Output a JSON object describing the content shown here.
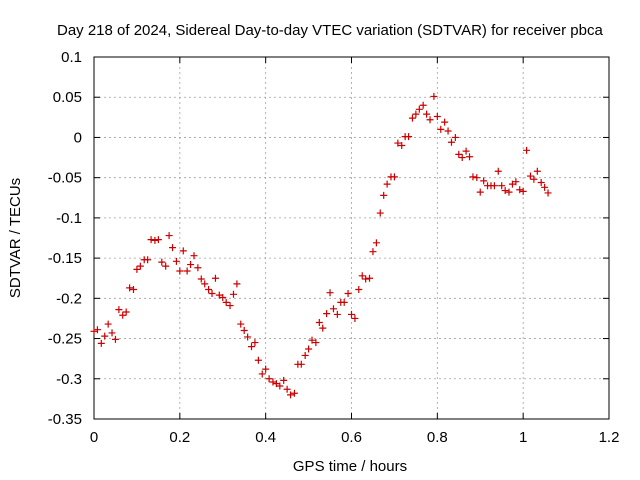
{
  "chart_data": {
    "type": "scatter",
    "title": "Day 218 of 2024, Sidereal Day-to-day VTEC variation (SDTVAR) for receiver pbca",
    "xlabel": "GPS time / hours",
    "ylabel": "SDTVAR / TECUs",
    "xlim": [
      0,
      1.2
    ],
    "ylim": [
      -0.35,
      0.1
    ],
    "xticks": [
      0,
      0.2,
      0.4,
      0.6,
      0.8,
      1,
      1.2
    ],
    "xtick_labels": [
      "0",
      "0.2",
      "0.4",
      "0.6",
      "0.8",
      "1",
      "1.2"
    ],
    "yticks": [
      -0.35,
      -0.3,
      -0.25,
      -0.2,
      -0.15,
      -0.1,
      -0.05,
      0,
      0.05,
      0.1
    ],
    "ytick_labels": [
      "-0.35",
      "-0.3",
      "-0.25",
      "-0.2",
      "-0.15",
      "-0.1",
      "-0.05",
      "0",
      "0.05",
      "0.1"
    ],
    "grid": true,
    "marker": "+",
    "color": "#cc0000",
    "series": [
      {
        "name": "SDTVAR",
        "x": [
          0.0,
          0.008,
          0.017,
          0.025,
          0.033,
          0.042,
          0.05,
          0.058,
          0.067,
          0.075,
          0.083,
          0.092,
          0.1,
          0.108,
          0.117,
          0.125,
          0.133,
          0.142,
          0.15,
          0.158,
          0.167,
          0.175,
          0.183,
          0.192,
          0.2,
          0.208,
          0.217,
          0.225,
          0.233,
          0.242,
          0.25,
          0.258,
          0.267,
          0.275,
          0.283,
          0.292,
          0.3,
          0.308,
          0.317,
          0.325,
          0.333,
          0.342,
          0.35,
          0.358,
          0.367,
          0.375,
          0.383,
          0.392,
          0.4,
          0.408,
          0.417,
          0.425,
          0.433,
          0.442,
          0.45,
          0.458,
          0.467,
          0.475,
          0.483,
          0.492,
          0.5,
          0.508,
          0.517,
          0.525,
          0.533,
          0.542,
          0.55,
          0.558,
          0.567,
          0.575,
          0.583,
          0.592,
          0.6,
          0.608,
          0.617,
          0.625,
          0.633,
          0.642,
          0.65,
          0.658,
          0.667,
          0.675,
          0.683,
          0.692,
          0.7,
          0.708,
          0.717,
          0.725,
          0.733,
          0.742,
          0.75,
          0.758,
          0.767,
          0.775,
          0.783,
          0.792,
          0.8,
          0.808,
          0.817,
          0.825,
          0.833,
          0.842,
          0.85,
          0.858,
          0.867,
          0.875,
          0.883,
          0.892,
          0.9,
          0.908,
          0.917,
          0.925,
          0.933,
          0.942,
          0.95,
          0.958,
          0.967,
          0.975,
          0.983,
          0.992,
          1.0,
          1.008,
          1.017,
          1.025,
          1.033,
          1.042,
          1.05,
          1.058
        ],
        "y": [
          -0.241,
          -0.239,
          -0.256,
          -0.247,
          -0.232,
          -0.243,
          -0.251,
          -0.214,
          -0.221,
          -0.217,
          -0.187,
          -0.189,
          -0.164,
          -0.16,
          -0.152,
          -0.152,
          -0.127,
          -0.128,
          -0.127,
          -0.155,
          -0.16,
          -0.122,
          -0.137,
          -0.154,
          -0.166,
          -0.141,
          -0.166,
          -0.158,
          -0.147,
          -0.162,
          -0.176,
          -0.182,
          -0.189,
          -0.194,
          -0.175,
          -0.196,
          -0.199,
          -0.205,
          -0.209,
          -0.195,
          -0.182,
          -0.232,
          -0.24,
          -0.248,
          -0.26,
          -0.255,
          -0.277,
          -0.294,
          -0.288,
          -0.3,
          -0.304,
          -0.306,
          -0.309,
          -0.302,
          -0.313,
          -0.32,
          -0.318,
          -0.282,
          -0.282,
          -0.271,
          -0.263,
          -0.252,
          -0.255,
          -0.23,
          -0.237,
          -0.219,
          -0.193,
          -0.213,
          -0.22,
          -0.205,
          -0.205,
          -0.194,
          -0.22,
          -0.225,
          -0.189,
          -0.172,
          -0.176,
          -0.175,
          -0.142,
          -0.131,
          -0.094,
          -0.072,
          -0.058,
          -0.049,
          -0.049,
          -0.007,
          -0.01,
          0.001,
          0.001,
          0.024,
          0.029,
          0.035,
          0.04,
          0.029,
          0.022,
          0.051,
          0.026,
          0.01,
          0.019,
          0.008,
          -0.006,
          0.0,
          -0.021,
          -0.025,
          -0.017,
          -0.024,
          -0.049,
          -0.05,
          -0.068,
          -0.054,
          -0.06,
          -0.06,
          -0.06,
          -0.042,
          -0.06,
          -0.066,
          -0.068,
          -0.058,
          -0.055,
          -0.065,
          -0.067,
          -0.016,
          -0.048,
          -0.052,
          -0.042,
          -0.056,
          -0.062,
          -0.069
        ]
      }
    ]
  }
}
